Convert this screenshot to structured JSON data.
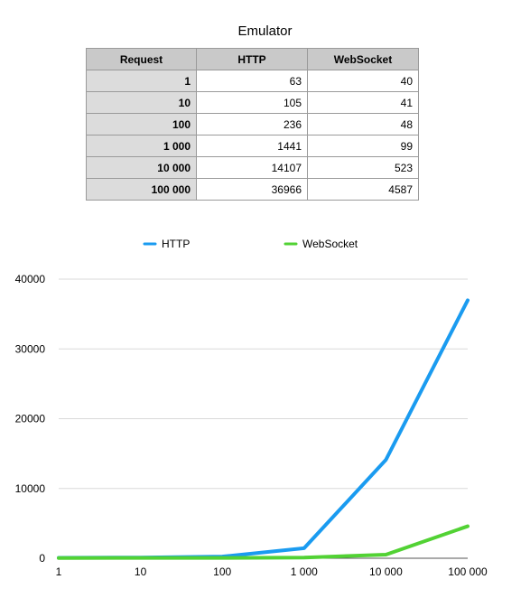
{
  "chart_data": {
    "type": "line",
    "title": "Emulator",
    "table": {
      "headers": [
        "Request",
        "HTTP",
        "WebSocket"
      ],
      "rows": [
        [
          "1",
          "63",
          "40"
        ],
        [
          "10",
          "105",
          "41"
        ],
        [
          "100",
          "236",
          "48"
        ],
        [
          "1 000",
          "1441",
          "99"
        ],
        [
          "10 000",
          "14107",
          "523"
        ],
        [
          "100 000",
          "36966",
          "4587"
        ]
      ]
    },
    "categories": [
      "1",
      "10",
      "100",
      "1 000",
      "10 000",
      "100 000"
    ],
    "series": [
      {
        "name": "HTTP",
        "color": "#1a9bf0",
        "values": [
          63,
          105,
          236,
          1441,
          14107,
          36966
        ]
      },
      {
        "name": "WebSocket",
        "color": "#52d234",
        "values": [
          40,
          41,
          48,
          99,
          523,
          4587
        ]
      }
    ],
    "ylim": [
      0,
      40000
    ],
    "yticks": [
      0,
      10000,
      20000,
      30000,
      40000
    ],
    "grid": true,
    "legend": "top-center"
  }
}
